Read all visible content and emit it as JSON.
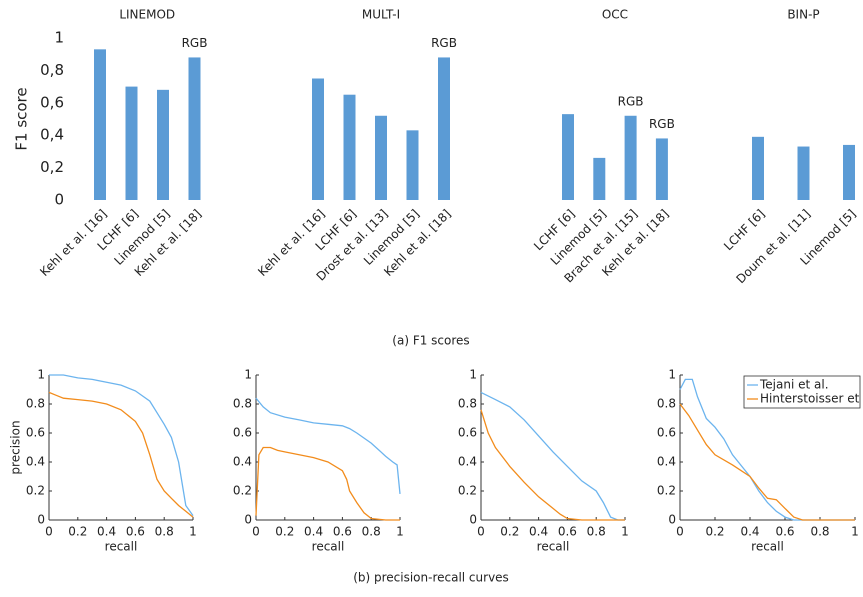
{
  "captions": [
    "(a) F1 scores",
    "(b) precision-recall curves"
  ],
  "chart_data": [
    {
      "type": "bar",
      "ylabel": "F1 score",
      "color": "#5b9bd5",
      "ylim": [
        0,
        1
      ],
      "yticks": [
        0,
        {
          "value": 0.2,
          "label": "0,2"
        },
        {
          "value": 0.4,
          "label": "0,4"
        },
        {
          "value": 0.6,
          "label": "0,6"
        },
        {
          "value": 0.8,
          "label": "0,8"
        },
        1
      ],
      "groups": [
        {
          "name": "LINEMOD",
          "categories": [
            "Kehl et al. [16]",
            "LCHF [6]",
            "Linemod [5]",
            "Kehl et al. [18]"
          ],
          "values": [
            0.93,
            0.7,
            0.68,
            0.88
          ],
          "notes": [
            null,
            null,
            null,
            "RGB"
          ]
        },
        {
          "name": "MULT-I",
          "categories": [
            "Kehl et al. [16]",
            "LCHF [6]",
            "Drost et al. [13]",
            "Linemod [5]",
            "Kehl et al. [18]"
          ],
          "values": [
            0.75,
            0.65,
            0.52,
            0.43,
            0.88
          ],
          "notes": [
            null,
            null,
            null,
            null,
            "RGB"
          ]
        },
        {
          "name": "OCC",
          "categories": [
            "LCHF [6]",
            "Linemod [5]",
            "Brach et al. [15]",
            "Kehl et al. [18]"
          ],
          "values": [
            0.53,
            0.26,
            0.52,
            0.38
          ],
          "notes": [
            null,
            null,
            "RGB",
            "RGB"
          ]
        },
        {
          "name": "BIN-P",
          "categories": [
            "LCHF [6]",
            "Doum et al. [11]",
            "Linemod [5]"
          ],
          "values": [
            0.39,
            0.33,
            0.34
          ],
          "notes": [
            null,
            null,
            null
          ]
        }
      ]
    },
    {
      "type": "line",
      "ylabel": "precision",
      "xlabel": "recall",
      "xlim": [
        0,
        1
      ],
      "ylim": [
        0,
        1
      ],
      "xticks": [
        0,
        0.2,
        0.4,
        0.6,
        0.8,
        1
      ],
      "yticks": [
        0,
        0.2,
        0.4,
        0.6,
        0.8,
        1
      ],
      "series": [
        {
          "color": "#6cb4ee",
          "x": [
            0,
            0.1,
            0.2,
            0.3,
            0.4,
            0.5,
            0.6,
            0.7,
            0.75,
            0.8,
            0.85,
            0.9,
            0.95,
            1
          ],
          "values": [
            1,
            1,
            0.98,
            0.97,
            0.95,
            0.93,
            0.89,
            0.82,
            0.74,
            0.66,
            0.57,
            0.4,
            0.1,
            0.03
          ]
        },
        {
          "color": "#f28c1c",
          "x": [
            0,
            0.05,
            0.1,
            0.2,
            0.3,
            0.4,
            0.5,
            0.6,
            0.65,
            0.7,
            0.75,
            0.8,
            0.85,
            0.9,
            0.95,
            1
          ],
          "values": [
            0.88,
            0.86,
            0.84,
            0.83,
            0.82,
            0.8,
            0.76,
            0.68,
            0.6,
            0.45,
            0.28,
            0.2,
            0.15,
            0.1,
            0.06,
            0.02
          ]
        }
      ]
    },
    {
      "type": "line",
      "xlabel": "recall",
      "xlim": [
        0,
        1
      ],
      "ylim": [
        0,
        1
      ],
      "xticks": [
        0,
        0.2,
        0.4,
        0.6,
        0.8,
        1
      ],
      "yticks": [
        0,
        0.2,
        0.4,
        0.6,
        0.8,
        1
      ],
      "series": [
        {
          "color": "#6cb4ee",
          "x": [
            0,
            0.05,
            0.1,
            0.2,
            0.3,
            0.4,
            0.5,
            0.6,
            0.65,
            0.7,
            0.8,
            0.9,
            0.95,
            0.98,
            1
          ],
          "values": [
            0.84,
            0.78,
            0.74,
            0.71,
            0.69,
            0.67,
            0.66,
            0.65,
            0.63,
            0.6,
            0.53,
            0.44,
            0.4,
            0.38,
            0.18
          ]
        },
        {
          "color": "#f28c1c",
          "x": [
            0,
            0.02,
            0.05,
            0.1,
            0.15,
            0.2,
            0.3,
            0.4,
            0.5,
            0.6,
            0.63,
            0.65,
            0.7,
            0.75,
            0.8,
            0.9,
            1
          ],
          "values": [
            0.03,
            0.45,
            0.5,
            0.5,
            0.48,
            0.47,
            0.45,
            0.43,
            0.4,
            0.34,
            0.28,
            0.2,
            0.12,
            0.05,
            0.01,
            0,
            0
          ]
        }
      ]
    },
    {
      "type": "line",
      "xlabel": "recall",
      "xlim": [
        0,
        1
      ],
      "ylim": [
        0,
        1
      ],
      "xticks": [
        0,
        0.2,
        0.4,
        0.6,
        0.8,
        1
      ],
      "yticks": [
        0,
        0.2,
        0.4,
        0.6,
        0.8,
        1
      ],
      "series": [
        {
          "color": "#6cb4ee",
          "x": [
            0,
            0.1,
            0.2,
            0.3,
            0.4,
            0.5,
            0.6,
            0.7,
            0.8,
            0.85,
            0.9,
            0.95,
            1
          ],
          "values": [
            0.88,
            0.83,
            0.78,
            0.69,
            0.58,
            0.47,
            0.37,
            0.27,
            0.2,
            0.12,
            0.02,
            0,
            0
          ]
        },
        {
          "color": "#f28c1c",
          "x": [
            0,
            0.05,
            0.1,
            0.2,
            0.3,
            0.4,
            0.5,
            0.55,
            0.6,
            0.7,
            1
          ],
          "values": [
            0.76,
            0.6,
            0.5,
            0.37,
            0.26,
            0.16,
            0.08,
            0.04,
            0.01,
            0,
            0
          ]
        }
      ]
    },
    {
      "type": "line",
      "xlabel": "recall",
      "xlim": [
        0,
        1
      ],
      "ylim": [
        0,
        1
      ],
      "xticks": [
        0,
        0.2,
        0.4,
        0.6,
        0.8,
        1
      ],
      "yticks": [
        0,
        0.2,
        0.4,
        0.6,
        0.8,
        1
      ],
      "legend": "upper right",
      "series": [
        {
          "name": "Tejani et al.",
          "color": "#6cb4ee",
          "x": [
            0,
            0.03,
            0.07,
            0.1,
            0.15,
            0.2,
            0.25,
            0.3,
            0.4,
            0.45,
            0.5,
            0.55,
            0.6,
            0.65,
            1
          ],
          "values": [
            0.9,
            0.97,
            0.97,
            0.85,
            0.7,
            0.64,
            0.56,
            0.45,
            0.3,
            0.2,
            0.12,
            0.06,
            0.02,
            0,
            0
          ]
        },
        {
          "name": "Hinterstoisser et al.",
          "color": "#f28c1c",
          "x": [
            0,
            0.05,
            0.1,
            0.15,
            0.2,
            0.3,
            0.4,
            0.45,
            0.5,
            0.55,
            0.6,
            0.65,
            0.7,
            1
          ],
          "values": [
            0.8,
            0.72,
            0.62,
            0.52,
            0.45,
            0.38,
            0.3,
            0.22,
            0.15,
            0.14,
            0.08,
            0.02,
            0,
            0
          ]
        }
      ]
    }
  ]
}
